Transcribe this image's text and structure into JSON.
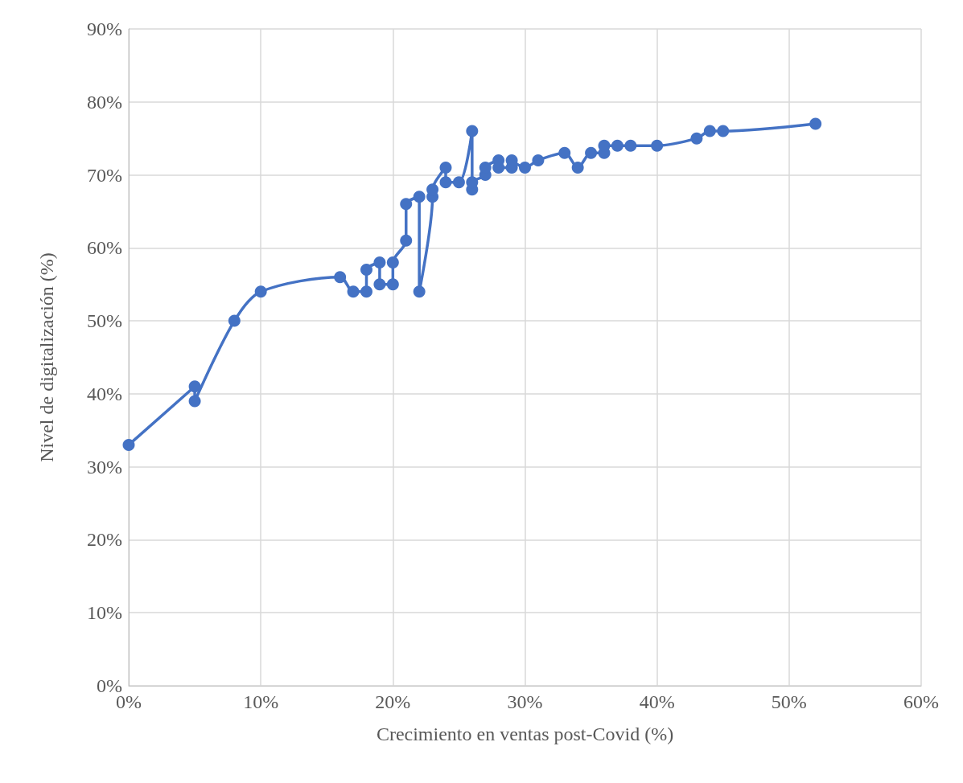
{
  "chart_data": {
    "type": "line",
    "xlabel": "Crecimiento en ventas post-Covid (%)",
    "ylabel": "Nivel de digitalización (%)",
    "x": [
      0,
      5,
      5,
      8,
      10,
      16,
      17,
      18,
      18,
      19,
      19,
      20,
      20,
      21,
      21,
      22,
      22,
      23,
      23,
      24,
      24,
      25,
      26,
      26,
      26,
      27,
      27,
      28,
      28,
      29,
      29,
      30,
      31,
      33,
      34,
      35,
      36,
      36,
      37,
      38,
      40,
      43,
      44,
      45,
      52
    ],
    "series": [
      {
        "color": "#4472c4",
        "values": [
          33,
          41,
          39,
          50,
          54,
          56,
          54,
          54,
          57,
          58,
          55,
          55,
          58,
          61,
          66,
          67,
          54,
          67,
          68,
          71,
          69,
          69,
          76,
          68,
          69,
          70,
          71,
          72,
          71,
          71,
          72,
          71,
          72,
          73,
          71,
          73,
          73,
          74,
          74,
          74,
          74,
          75,
          76,
          76,
          77
        ]
      }
    ],
    "xlim": [
      0,
      60
    ],
    "xticks": [
      {
        "value": 0,
        "label": "0%"
      },
      {
        "value": 10,
        "label": "10%"
      },
      {
        "value": 20,
        "label": "20%"
      },
      {
        "value": 30,
        "label": "30%"
      },
      {
        "value": 40,
        "label": "40%"
      },
      {
        "value": 50,
        "label": "50%"
      },
      {
        "value": 60,
        "label": "60%"
      }
    ],
    "ylim": [
      0,
      90
    ],
    "yticks": [
      {
        "value": 0,
        "label": "0%"
      },
      {
        "value": 10,
        "label": "10%"
      },
      {
        "value": 20,
        "label": "20%"
      },
      {
        "value": 30,
        "label": "30%"
      },
      {
        "value": 40,
        "label": "40%"
      },
      {
        "value": 50,
        "label": "50%"
      },
      {
        "value": 60,
        "label": "60%"
      },
      {
        "value": 70,
        "label": "70%"
      },
      {
        "value": 80,
        "label": "80%"
      },
      {
        "value": 90,
        "label": "90%"
      }
    ],
    "grid": true,
    "marker": "circle",
    "line_style": "solid"
  }
}
